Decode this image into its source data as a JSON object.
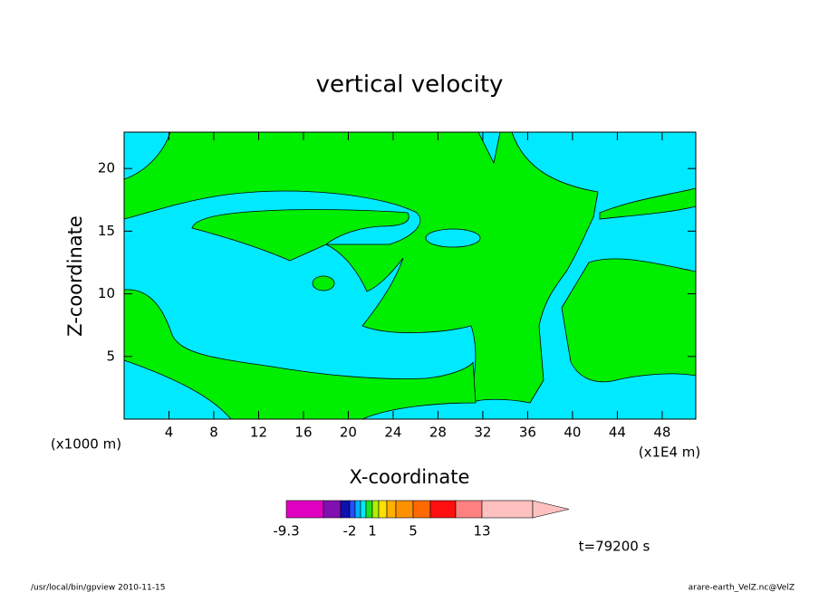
{
  "chart_data": {
    "type": "contour",
    "title": "vertical velocity",
    "xlabel": "X-coordinate",
    "ylabel": "Z-coordinate",
    "x_unit_left": "(x1000 m)",
    "x_unit_right": "(x1E4 m)",
    "xlim": [
      0,
      51
    ],
    "xticks": [
      4,
      8,
      12,
      16,
      20,
      24,
      28,
      32,
      36,
      40,
      44,
      48
    ],
    "ylim": [
      0,
      22.9
    ],
    "yticks": [
      5,
      10,
      15,
      20
    ],
    "colorbar": {
      "colors": [
        "#e000c0",
        "#8010b0",
        "#1010b0",
        "#2050ff",
        "#00b0ff",
        "#00e8ff",
        "#20e020",
        "#b0f000",
        "#ffe000",
        "#ffb000",
        "#ff9000",
        "#ff6a00",
        "#ff1010",
        "#ff8080",
        "#ffc0c0"
      ],
      "ticks": [
        -9.3,
        -2,
        1,
        5,
        13
      ]
    },
    "time": "t=79200 s"
  },
  "footer": {
    "left": "/usr/local/bin/gpview   2010-11-15",
    "right": "arare-earth_VelZ.nc@VelZ"
  }
}
